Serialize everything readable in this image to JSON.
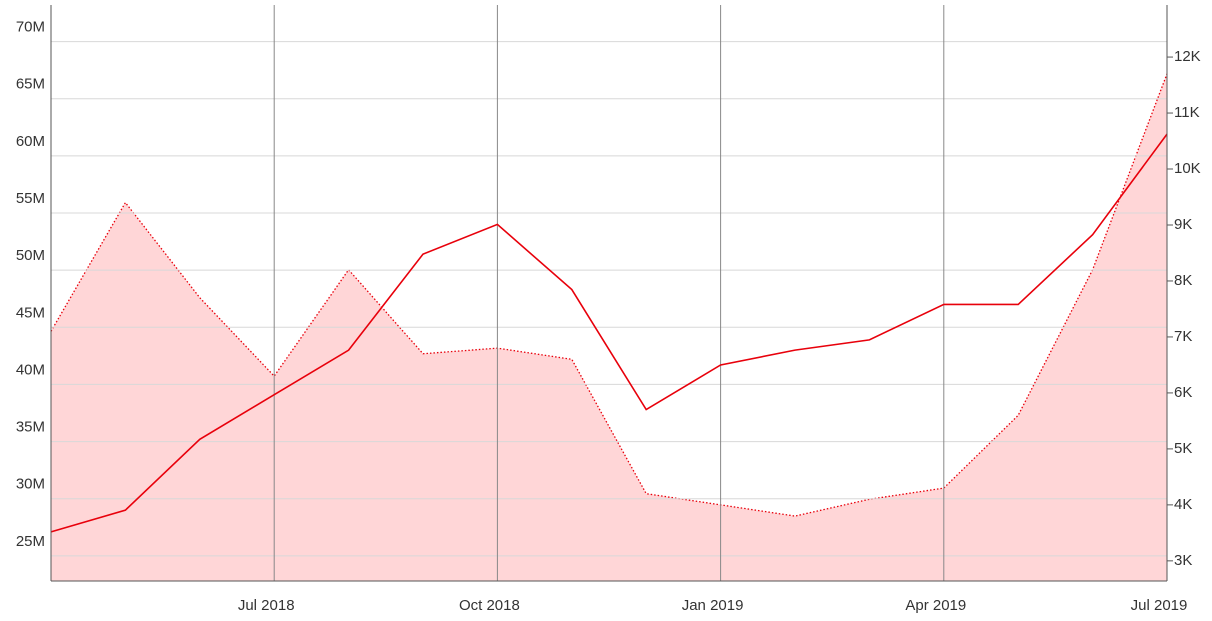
{
  "chart_data": {
    "type": "line",
    "x": [
      "2018-04",
      "2018-05",
      "2018-06",
      "2018-07",
      "2018-08",
      "2018-09",
      "2018-10",
      "2018-11",
      "2018-12",
      "2019-01",
      "2019-02",
      "2019-03",
      "2019-04",
      "2019-05",
      "2019-06",
      "2019-07"
    ],
    "xlim": [
      "2018-04",
      "2019-07"
    ],
    "xticks": [
      {
        "value": "2018-07",
        "label": "Jul 2018"
      },
      {
        "value": "2018-10",
        "label": "Oct 2018"
      },
      {
        "value": "2019-01",
        "label": "Jan 2019"
      },
      {
        "value": "2019-04",
        "label": "Apr 2019"
      },
      {
        "value": "2019-07",
        "label": "Jul 2019"
      }
    ],
    "ylim": [
      22.8,
      73.2
    ],
    "yticks": [
      {
        "value": 25,
        "label": "25M"
      },
      {
        "value": 30,
        "label": "30M"
      },
      {
        "value": 35,
        "label": "35M"
      },
      {
        "value": 40,
        "label": "40M"
      },
      {
        "value": 45,
        "label": "45M"
      },
      {
        "value": 50,
        "label": "50M"
      },
      {
        "value": 55,
        "label": "55M"
      },
      {
        "value": 60,
        "label": "60M"
      },
      {
        "value": 65,
        "label": "65M"
      },
      {
        "value": 70,
        "label": "70M"
      }
    ],
    "y2lim": [
      2.64,
      12.93
    ],
    "y2ticks": [
      {
        "value": 3,
        "label": "3K"
      },
      {
        "value": 4,
        "label": "4K"
      },
      {
        "value": 5,
        "label": "5K"
      },
      {
        "value": 6,
        "label": "6K"
      },
      {
        "value": 7,
        "label": "7K"
      },
      {
        "value": 8,
        "label": "8K"
      },
      {
        "value": 9,
        "label": "9K"
      },
      {
        "value": 10,
        "label": "10K"
      },
      {
        "value": 11,
        "label": "11K"
      },
      {
        "value": 12,
        "label": "12K"
      }
    ],
    "grid": true,
    "series": [
      {
        "kind": "area",
        "axis": "y2",
        "color": "#e8000b",
        "fill": "#ffd6d7",
        "values": [
          7.1,
          9.4,
          7.7,
          6.3,
          8.2,
          6.7,
          6.8,
          6.6,
          4.2,
          4.0,
          3.8,
          4.1,
          4.3,
          5.6,
          8.2,
          11.7
        ]
      },
      {
        "kind": "line",
        "color": "#e8000b",
        "values": [
          27.1,
          29,
          35.2,
          39.1,
          43,
          51.4,
          54,
          48.3,
          37.8,
          41.7,
          43,
          43.9,
          47,
          47,
          53.1,
          61.9
        ]
      }
    ]
  }
}
